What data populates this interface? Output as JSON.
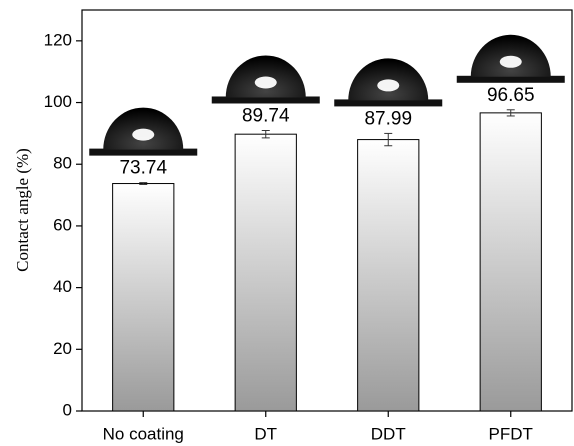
{
  "chart_data": {
    "type": "bar",
    "ylabel": "Contact angle (%)",
    "categories": [
      "No coating",
      "DT",
      "DDT",
      "PFDT"
    ],
    "values": [
      73.74,
      89.74,
      87.99,
      96.65
    ],
    "errors": [
      0.3,
      1.2,
      2.0,
      1.0
    ],
    "ylim": [
      0,
      130
    ],
    "yticks": [
      0,
      20,
      40,
      60,
      80,
      100,
      120
    ],
    "grid": false
  }
}
